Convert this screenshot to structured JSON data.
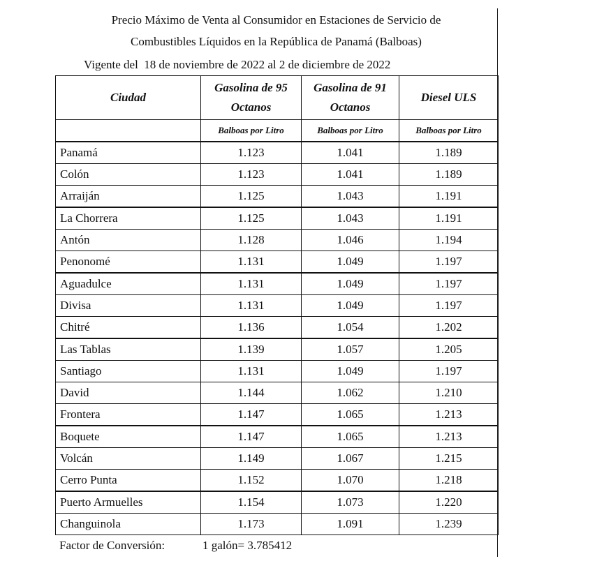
{
  "title_line1": "Precio Máximo de Venta al Consumidor en Estaciones de Servicio de",
  "title_line2": "Combustibles Líquidos en la República de Panamá (Balboas)",
  "title_line3": "Vigente del  18 de noviembre de 2022 al 2 de diciembre de 2022",
  "headers": [
    "Ciudad",
    "Gasolina de 95 Octanos",
    "Gasolina de 91 Octanos",
    "Diesel ULS"
  ],
  "units": [
    "",
    "Balboas por Litro",
    "Balboas por Litro",
    "Balboas por Litro"
  ],
  "rows": [
    [
      "Panamá",
      "1.123",
      "1.041",
      "1.189"
    ],
    [
      "Colón",
      "1.123",
      "1.041",
      "1.189"
    ],
    [
      "Arraiján",
      "1.125",
      "1.043",
      "1.191"
    ],
    [
      "La Chorrera",
      "1.125",
      "1.043",
      "1.191"
    ],
    [
      "Antón",
      "1.128",
      "1.046",
      "1.194"
    ],
    [
      "Penonomé",
      "1.131",
      "1.049",
      "1.197"
    ],
    [
      "Aguadulce",
      "1.131",
      "1.049",
      "1.197"
    ],
    [
      "Divisa",
      "1.131",
      "1.049",
      "1.197"
    ],
    [
      "Chitré",
      "1.136",
      "1.054",
      "1.202"
    ],
    [
      "Las Tablas",
      "1.139",
      "1.057",
      "1.205"
    ],
    [
      "Santiago",
      "1.131",
      "1.049",
      "1.197"
    ],
    [
      "David",
      "1.144",
      "1.062",
      "1.210"
    ],
    [
      "Frontera",
      "1.147",
      "1.065",
      "1.213"
    ],
    [
      "Boquete",
      "1.147",
      "1.065",
      "1.213"
    ],
    [
      "Volcán",
      "1.149",
      "1.067",
      "1.215"
    ],
    [
      "Cerro Punta",
      "1.152",
      "1.070",
      "1.218"
    ],
    [
      "Puerto Armuelles",
      "1.154",
      "1.073",
      "1.220"
    ],
    [
      "Changuinola",
      "1.173",
      "1.091",
      "1.239"
    ]
  ],
  "footer": {
    "label": "Factor de Conversión:",
    "value": "1 galón= 3.785412"
  }
}
